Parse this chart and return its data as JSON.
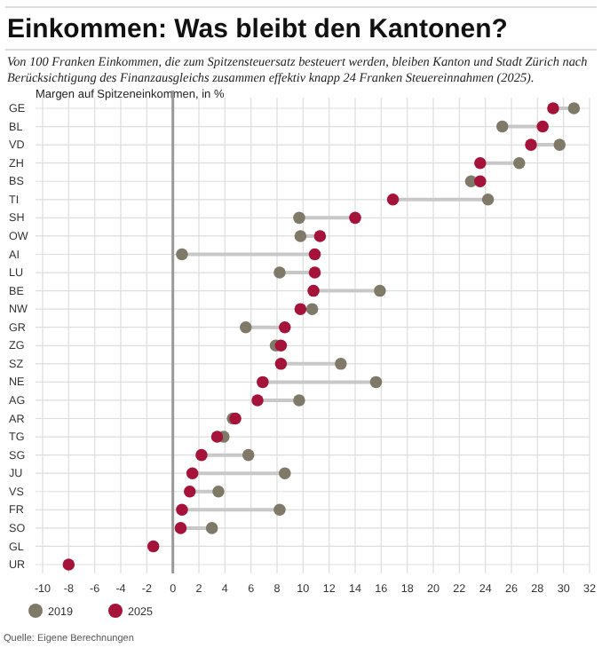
{
  "chart_data": {
    "type": "scatter",
    "orientation": "horizontal",
    "title": "Einkommen: Was bleibt den Kantonen?",
    "subtitle": "Von 100 Franken Einkommen, die zum Spitzensteuersatz besteuert werden, bleiben Kanton und Stadt Zürich nach Berücksichtigung des Finanzausgleichs zusammen effektiv knapp 24 Franken Steuereinnahmen (2025).",
    "xlabel": "Margen auf Spitzeneinkommen, in %",
    "categories": [
      "GE",
      "BL",
      "VD",
      "ZH",
      "BS",
      "TI",
      "SH",
      "OW",
      "AI",
      "LU",
      "BE",
      "NW",
      "GR",
      "ZG",
      "SZ",
      "NE",
      "AG",
      "AR",
      "TG",
      "SG",
      "JU",
      "VS",
      "FR",
      "SO",
      "GL",
      "UR"
    ],
    "series": [
      {
        "name": "2019",
        "color": "#7f7a68",
        "values": [
          30.8,
          25.3,
          29.7,
          26.6,
          22.9,
          24.2,
          9.7,
          9.8,
          0.7,
          8.2,
          15.9,
          10.7,
          5.6,
          7.9,
          12.9,
          15.6,
          9.7,
          4.6,
          3.9,
          5.8,
          8.6,
          3.5,
          8.2,
          3.0,
          null,
          null
        ]
      },
      {
        "name": "2025",
        "color": "#a5133b",
        "values": [
          29.2,
          28.4,
          27.5,
          23.6,
          23.6,
          16.9,
          14.0,
          11.3,
          10.9,
          10.9,
          10.8,
          9.8,
          8.6,
          8.3,
          8.3,
          6.9,
          6.5,
          4.8,
          3.4,
          2.2,
          1.5,
          1.3,
          0.7,
          0.6,
          -1.5,
          -8.0
        ]
      }
    ],
    "xlim": [
      -10,
      32
    ],
    "xticks": [
      -10,
      -8,
      -6,
      -4,
      -2,
      0,
      2,
      4,
      6,
      8,
      10,
      12,
      14,
      16,
      18,
      20,
      22,
      24,
      26,
      28,
      30,
      32
    ],
    "ref_lines": [
      {
        "axis": "x",
        "value": 0,
        "color": "#999999"
      }
    ],
    "grid": true,
    "legend": "bottom",
    "marker": "circle",
    "annotations": [
      "Quelle: Eigene Berechnungen"
    ]
  }
}
